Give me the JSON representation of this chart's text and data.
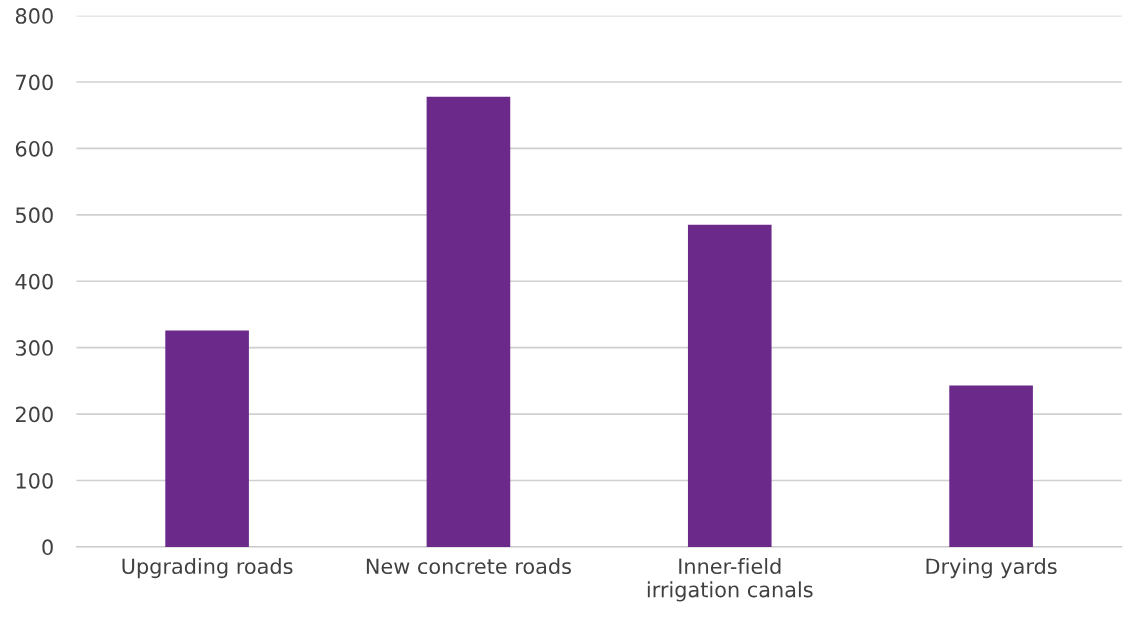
{
  "chart_data": {
    "type": "bar",
    "categories": [
      "Upgrading roads",
      "New concrete roads",
      "Inner-field\nirrigation canals",
      "Drying yards"
    ],
    "values": [
      326,
      678,
      485,
      243
    ],
    "color": "#6b2a8a",
    "ylim": [
      0,
      800
    ],
    "yticks": [
      0,
      100,
      200,
      300,
      400,
      500,
      600,
      700,
      800
    ],
    "grid": "y"
  }
}
